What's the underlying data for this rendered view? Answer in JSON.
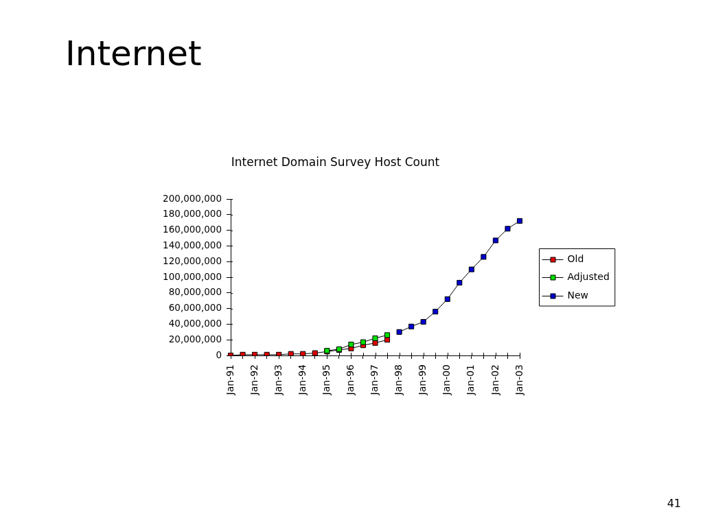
{
  "chart_data": {
    "type": "line",
    "title": "Internet",
    "subtitle": "Internet Domain Survey Host Count",
    "annotations": [
      "41"
    ],
    "categories": [
      "Jan-91",
      null,
      "Jan-92",
      null,
      "Jan-93",
      null,
      "Jan-94",
      null,
      "Jan-95",
      null,
      "Jan-96",
      null,
      "Jan-97",
      null,
      "Jan-98",
      null,
      "Jan-99",
      null,
      "Jan-00",
      null,
      "Jan-01",
      null,
      "Jan-02",
      null,
      "Jan-03"
    ],
    "series": [
      {
        "name": "Old",
        "color": "#e00000",
        "values": [
          0,
          1000000,
          1000000,
          1000000,
          1000000,
          2000000,
          2000000,
          3000000,
          5000000,
          7000000,
          9000000,
          13000000,
          16000000,
          20000000,
          null,
          null,
          null,
          null,
          null,
          null,
          null,
          null,
          null,
          null,
          null
        ]
      },
      {
        "name": "Adjusted",
        "color": "#00e000",
        "values": [
          null,
          null,
          null,
          null,
          null,
          null,
          null,
          null,
          6000000,
          8000000,
          14000000,
          17000000,
          22000000,
          26000000,
          null,
          null,
          null,
          null,
          null,
          null,
          null,
          null,
          null,
          null,
          null
        ]
      },
      {
        "name": "New",
        "color": "#0000d0",
        "values": [
          null,
          null,
          null,
          null,
          null,
          null,
          null,
          null,
          null,
          null,
          null,
          null,
          null,
          null,
          30000000,
          37000000,
          43000000,
          56000000,
          72000000,
          93000000,
          110000000,
          126000000,
          147000000,
          162000000,
          172000000
        ]
      }
    ],
    "ylim": [
      0,
      200000000
    ],
    "yticks": [
      {
        "value": 0,
        "label": "0"
      },
      {
        "value": 20000000,
        "label": "20,000,000"
      },
      {
        "value": 40000000,
        "label": "40,000,000"
      },
      {
        "value": 60000000,
        "label": "60,000,000"
      },
      {
        "value": 80000000,
        "label": "80,000,000"
      },
      {
        "value": 100000000,
        "label": "100,000,000"
      },
      {
        "value": 120000000,
        "label": "120,000,000"
      },
      {
        "value": 140000000,
        "label": "140,000,000"
      },
      {
        "value": 160000000,
        "label": "160,000,000"
      },
      {
        "value": 180000000,
        "label": "180,000,000"
      },
      {
        "value": 200000000,
        "label": "200,000,000"
      }
    ],
    "grid": false,
    "legend": "right",
    "marker": "square"
  }
}
